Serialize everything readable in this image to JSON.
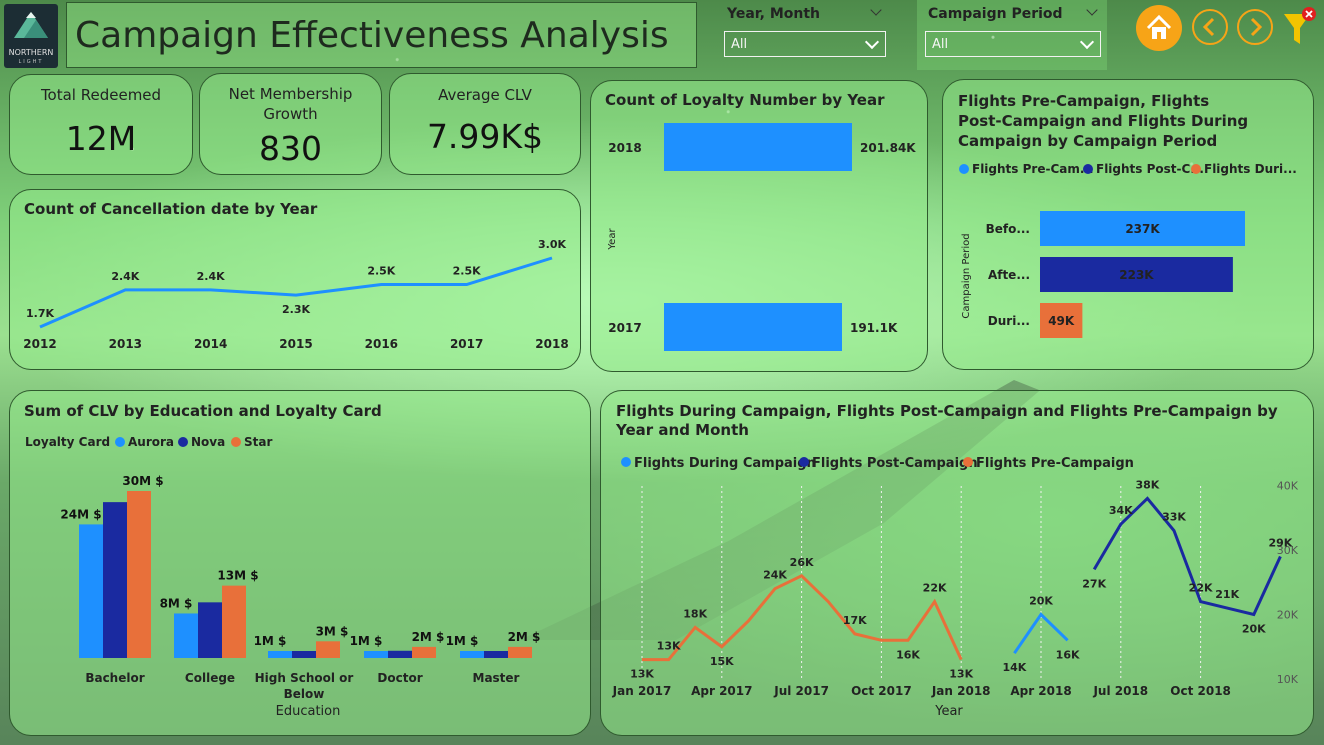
{
  "header": {
    "logo_text_1": "NORTHERN",
    "logo_text_2": "LIGHT",
    "title": "Campaign Effectiveness Analysis"
  },
  "slicers": [
    {
      "label": "Year, Month",
      "value": "All"
    },
    {
      "label": "Campaign Period",
      "value": "All"
    }
  ],
  "nav": {
    "home_icon": "home-icon",
    "back_icon": "chevron-left-icon",
    "forward_icon": "chevron-right-icon",
    "filter_icon": "funnel-clear-icon"
  },
  "kpis": [
    {
      "label": "Total Redeemed",
      "value": "12M"
    },
    {
      "label": "Net Membership Growth",
      "value": "830"
    },
    {
      "label": "Average CLV",
      "value": "7.99K$"
    }
  ],
  "colors": {
    "aurora": "#1e90ff",
    "nova": "#1a2aa0",
    "star": "#e8703a",
    "line": "#1e90ff"
  },
  "chart_data": [
    {
      "id": "cancellation",
      "type": "line",
      "title": "Count of Cancellation date by Year",
      "x": [
        "2012",
        "2013",
        "2014",
        "2015",
        "2016",
        "2017",
        "2018"
      ],
      "values": [
        1.7,
        2.4,
        2.4,
        2.3,
        2.5,
        2.5,
        3.0
      ],
      "labels": [
        "1.7K",
        "2.4K",
        "2.4K",
        "2.3K",
        "2.5K",
        "2.5K",
        "3.0K"
      ]
    },
    {
      "id": "loyalty",
      "type": "bar",
      "title": "Count of Loyalty Number by Year",
      "ylabel": "Year",
      "categories": [
        "2018",
        "2017"
      ],
      "values": [
        201.84,
        191.1
      ],
      "labels": [
        "201.84K",
        "191.1K"
      ]
    },
    {
      "id": "flights_period",
      "type": "bar",
      "title": "Flights Pre-Campaign, Flights Post-Campaign and Flights During Campaign by Campaign Period",
      "legend": [
        "Flights Pre-Cam...",
        "Flights Post-C...",
        "Flights Duri..."
      ],
      "ylabel": "Campaign Period",
      "categories": [
        "Befo...",
        "Afte...",
        "Duri..."
      ],
      "values": [
        237,
        223,
        49
      ],
      "labels": [
        "237K",
        "223K",
        "49K"
      ]
    },
    {
      "id": "clv",
      "type": "bar",
      "title": "Sum of CLV by Education and Loyalty Card",
      "legend_title": "Loyalty Card",
      "xlabel": "Education",
      "categories": [
        "Bachelor",
        "College",
        "High School or Below",
        "Doctor",
        "Master"
      ],
      "series": [
        {
          "name": "Aurora",
          "values": [
            24,
            8,
            1,
            1,
            1
          ]
        },
        {
          "name": "Nova",
          "values": [
            28,
            10,
            1.2,
            1.3,
            1.2
          ]
        },
        {
          "name": "Star",
          "values": [
            30,
            13,
            3,
            2,
            2
          ]
        }
      ],
      "labels": [
        "24M $",
        "30M $",
        "8M $",
        "13M $",
        "1M $",
        "3M $",
        "1M $",
        "2M $",
        "1M $",
        "2M $"
      ]
    },
    {
      "id": "flights_month",
      "type": "line",
      "title": "Flights During Campaign, Flights Post-Campaign and Flights Pre-Campaign by Year and Month",
      "xlabel": "Year",
      "x_ticks": [
        "Jan 2017",
        "Apr 2017",
        "Jul 2017",
        "Oct 2017",
        "Jan 2018",
        "Apr 2018",
        "Jul 2018",
        "Oct 2018"
      ],
      "y_ticks": [
        "10K",
        "20K",
        "30K",
        "40K"
      ],
      "ylim": [
        10,
        40
      ],
      "series": [
        {
          "name": "Flights During Campaign",
          "x": [
            15,
            16,
            17
          ],
          "values": [
            14,
            20,
            16
          ],
          "labels": [
            "14K",
            "20K",
            "16K"
          ]
        },
        {
          "name": "Flights Post-Campaign",
          "x": [
            18,
            19,
            20,
            21,
            22,
            23,
            24,
            25
          ],
          "values": [
            27,
            34,
            38,
            33,
            22,
            21,
            20,
            29
          ],
          "labels": [
            "27K",
            "34K",
            "38K",
            "33K",
            "22K",
            "21K",
            "20K",
            "29K"
          ]
        },
        {
          "name": "Flights Pre-Campaign",
          "x": [
            1,
            2,
            3,
            4,
            5,
            6,
            7,
            8,
            9,
            10,
            11,
            12,
            13
          ],
          "values": [
            13,
            13,
            18,
            15,
            19,
            24,
            26,
            22,
            17,
            16,
            16,
            22,
            13
          ],
          "labels": [
            "13K",
            "13K",
            "18K",
            "15K",
            "",
            "24K",
            "26K",
            "",
            "17K",
            "",
            "16K",
            "22K",
            "13K"
          ]
        }
      ]
    }
  ]
}
